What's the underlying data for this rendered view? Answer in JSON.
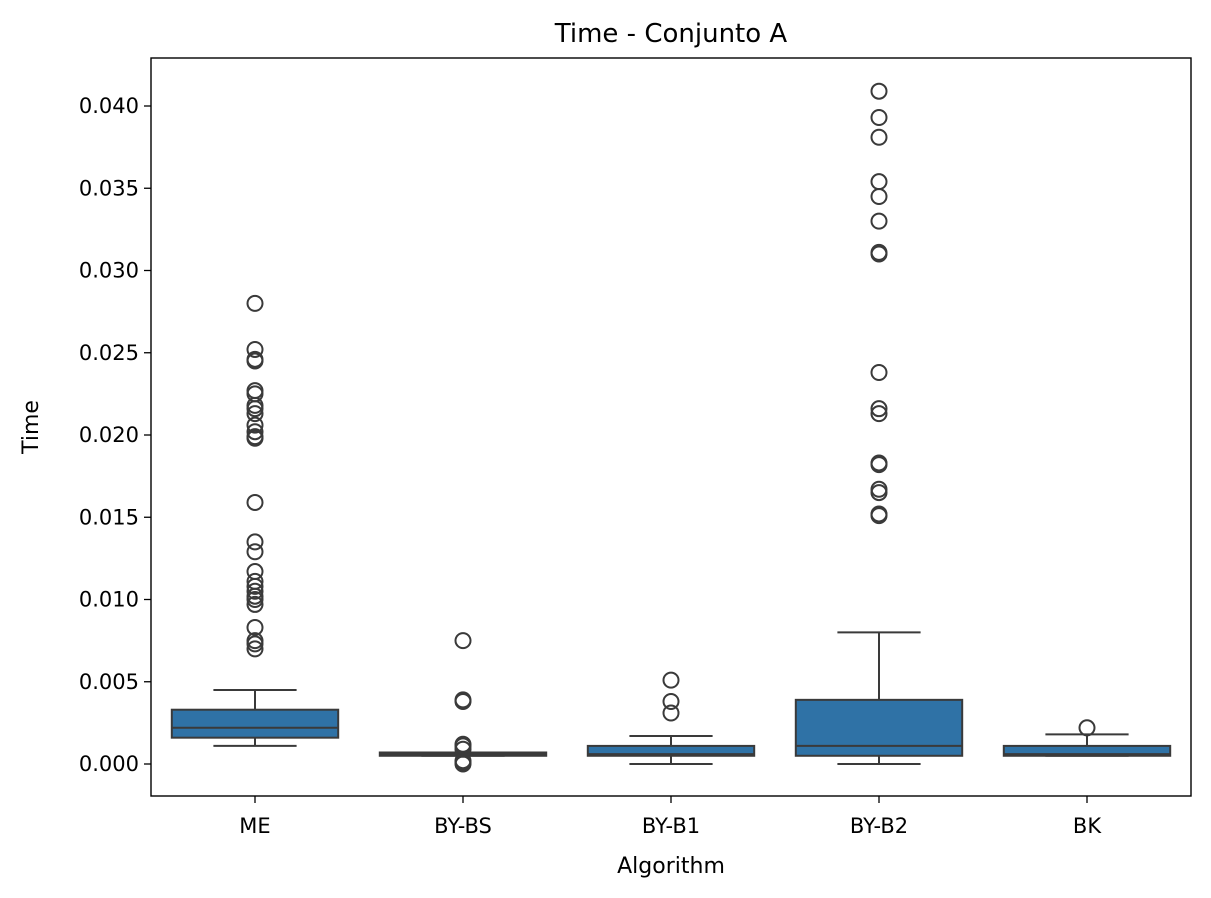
{
  "chart_data": {
    "type": "box",
    "title": "Time - Conjunto A",
    "xlabel": "Algorithm",
    "ylabel": "Time",
    "ylim": [
      -0.002,
      0.043
    ],
    "yticks": [
      "0.000",
      "0.005",
      "0.010",
      "0.015",
      "0.020",
      "0.025",
      "0.030",
      "0.035",
      "0.040"
    ],
    "box_color": "#2f72a6",
    "line_color": "#3a3a3a",
    "grid": false,
    "categories": [
      "ME",
      "BY-BS",
      "BY-B1",
      "BY-B2",
      "BK"
    ],
    "boxes": [
      {
        "category": "ME",
        "whisker_low": 0.0011,
        "q1": 0.0016,
        "median": 0.0022,
        "q3": 0.0033,
        "whisker_high": 0.0045,
        "outliers": [
          0.028,
          0.0252,
          0.0246,
          0.0245,
          0.0227,
          0.0225,
          0.0218,
          0.0216,
          0.0213,
          0.0206,
          0.0202,
          0.0199,
          0.0198,
          0.0159,
          0.0135,
          0.0129,
          0.0117,
          0.0111,
          0.0108,
          0.0105,
          0.0102,
          0.01,
          0.0097,
          0.0083,
          0.0075,
          0.0073,
          0.007
        ]
      },
      {
        "category": "BY-BS",
        "whisker_low": 0.0005,
        "q1": 0.0005,
        "median": 0.0006,
        "q3": 0.0007,
        "whisker_high": 0.0007,
        "outliers": [
          0.0075,
          0.0039,
          0.0038,
          0.0012,
          0.0011,
          0.0009,
          0.0002,
          0.0001,
          0.0
        ]
      },
      {
        "category": "BY-B1",
        "whisker_low": 0.0,
        "q1": 0.0005,
        "median": 0.0006,
        "q3": 0.0011,
        "whisker_high": 0.0017,
        "outliers": [
          0.0051,
          0.0038,
          0.0031
        ]
      },
      {
        "category": "BY-B2",
        "whisker_low": 0.0,
        "q1": 0.0005,
        "median": 0.0011,
        "q3": 0.0039,
        "whisker_high": 0.008,
        "outliers": [
          0.0409,
          0.0393,
          0.0381,
          0.0354,
          0.0345,
          0.033,
          0.0311,
          0.031,
          0.0238,
          0.0216,
          0.0213,
          0.0183,
          0.0182,
          0.0167,
          0.0165,
          0.0152,
          0.0151
        ]
      },
      {
        "category": "BK",
        "whisker_low": 0.0005,
        "q1": 0.0005,
        "median": 0.0006,
        "q3": 0.0011,
        "whisker_high": 0.0018,
        "outliers": [
          0.0022
        ]
      }
    ]
  }
}
